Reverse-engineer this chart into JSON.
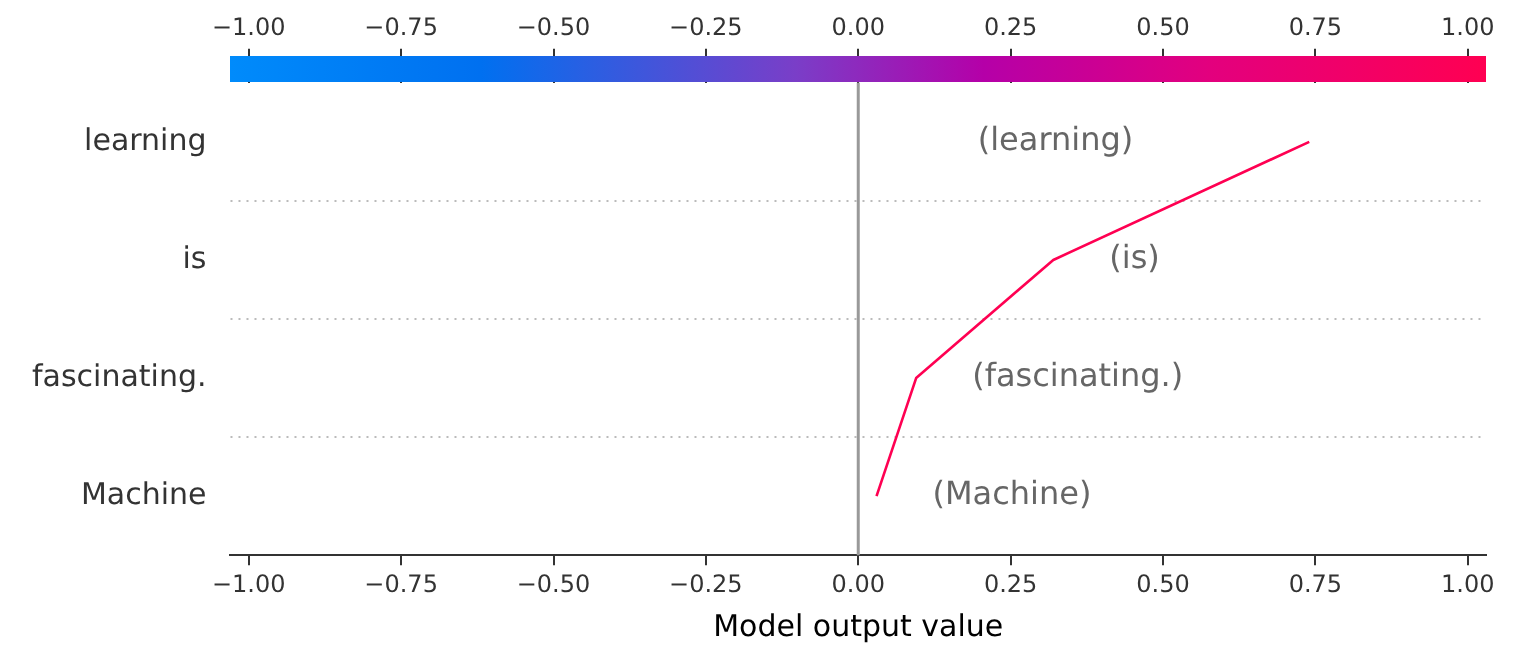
{
  "chart_data": {
    "type": "line",
    "orientation": "horizontal",
    "xlabel": "Model output value",
    "categories": [
      "learning",
      "is",
      "fascinating.",
      "Machine"
    ],
    "series": [
      {
        "color": "#ff0052",
        "values": [
          0.74,
          0.32,
          0.095,
          0.03
        ]
      }
    ],
    "xlim": [
      -1.03,
      1.03
    ],
    "xticks": [
      {
        "value": -1,
        "label": "−1.00"
      },
      {
        "value": -0.75,
        "label": "−0.75"
      },
      {
        "value": -0.5,
        "label": "−0.50"
      },
      {
        "value": -0.25,
        "label": "−0.25"
      },
      {
        "value": 0,
        "label": "0.00"
      },
      {
        "value": 0.25,
        "label": "0.25"
      },
      {
        "value": 0.5,
        "label": "0.50"
      },
      {
        "value": 0.75,
        "label": "0.75"
      },
      {
        "value": 1,
        "label": "1.00"
      }
    ],
    "x2lim": [
      -1.03,
      1.03
    ],
    "x2ticks": [
      {
        "value": -1,
        "label": "−1.00"
      },
      {
        "value": -0.75,
        "label": "−0.75"
      },
      {
        "value": -0.5,
        "label": "−0.50"
      },
      {
        "value": -0.25,
        "label": "−0.25"
      },
      {
        "value": 0,
        "label": "0.00"
      },
      {
        "value": 0.25,
        "label": "0.25"
      },
      {
        "value": 0.5,
        "label": "0.50"
      },
      {
        "value": 0.75,
        "label": "0.75"
      },
      {
        "value": 1,
        "label": "1.00"
      }
    ],
    "ref_lines": [
      {
        "axis": "x",
        "value": 0,
        "color": "#999999",
        "line_style": "solid"
      }
    ],
    "annotations": [
      "(learning)",
      "(is)",
      "(fascinating.)",
      "(Machine)"
    ],
    "grid": "y",
    "legend": false,
    "marker": "none",
    "line_style": "solid"
  }
}
